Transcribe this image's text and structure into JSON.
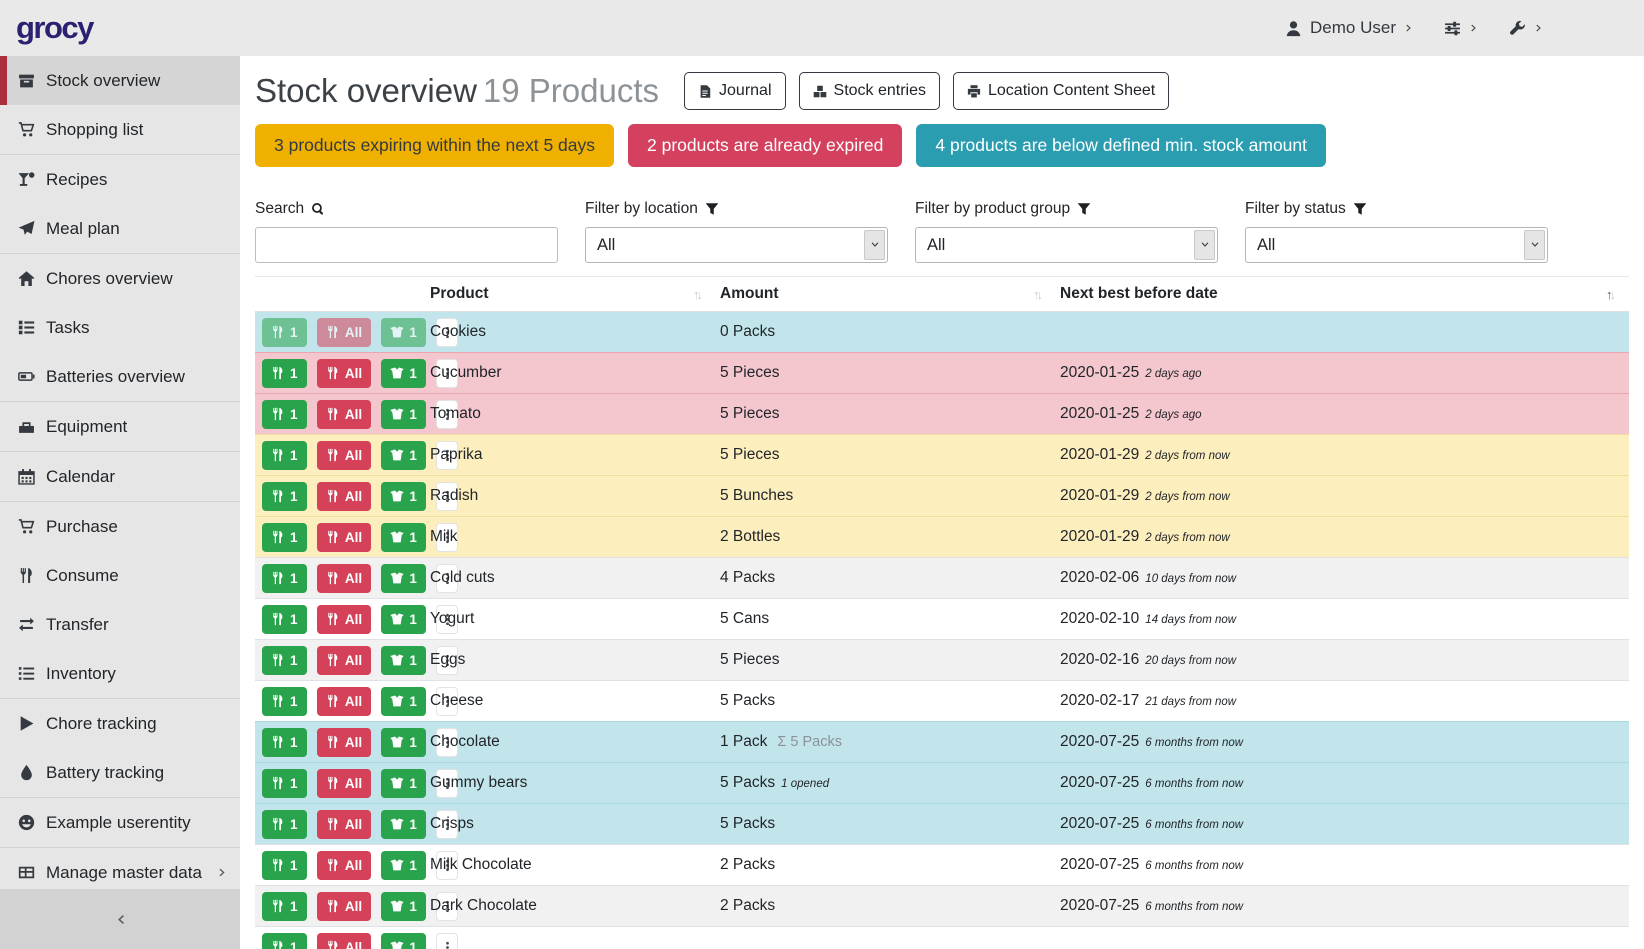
{
  "brand": "grocy",
  "navbar": {
    "user": "Demo User"
  },
  "sidebar": {
    "items": [
      {
        "label": "Stock overview",
        "icon": "box-archive",
        "active": true
      },
      {
        "label": "Shopping list",
        "icon": "shopping-cart",
        "divider_after": true
      },
      {
        "label": "Recipes",
        "icon": "cocktail"
      },
      {
        "label": "Meal plan",
        "icon": "paper-plane",
        "divider_after": true
      },
      {
        "label": "Chores overview",
        "icon": "home"
      },
      {
        "label": "Tasks",
        "icon": "tasks"
      },
      {
        "label": "Batteries overview",
        "icon": "battery",
        "divider_after": true
      },
      {
        "label": "Equipment",
        "icon": "toolbox",
        "divider_after": true
      },
      {
        "label": "Calendar",
        "icon": "calendar",
        "divider_after": true
      },
      {
        "label": "Purchase",
        "icon": "shopping-cart"
      },
      {
        "label": "Consume",
        "icon": "utensils"
      },
      {
        "label": "Transfer",
        "icon": "exchange"
      },
      {
        "label": "Inventory",
        "icon": "list",
        "divider_after": true
      },
      {
        "label": "Chore tracking",
        "icon": "play"
      },
      {
        "label": "Battery tracking",
        "icon": "droplet",
        "divider_after": true
      },
      {
        "label": "Example userentity",
        "icon": "smiley",
        "divider_after": true
      },
      {
        "label": "Manage master data",
        "icon": "table",
        "submenu": true
      }
    ]
  },
  "header": {
    "title": "Stock overview",
    "product_count": "19 Products",
    "buttons": [
      {
        "label": "Journal",
        "icon": "file"
      },
      {
        "label": "Stock entries",
        "icon": "cubes"
      },
      {
        "label": "Location Content Sheet",
        "icon": "print"
      }
    ]
  },
  "alerts": {
    "expiring": "3 products expiring within the next 5 days",
    "expired": "2 products are already expired",
    "below_min": "4 products are below defined min. stock amount"
  },
  "filters": {
    "search": {
      "label": "Search",
      "value": ""
    },
    "location": {
      "label": "Filter by location",
      "value": "All"
    },
    "product_group": {
      "label": "Filter by product group",
      "value": "All"
    },
    "status": {
      "label": "Filter by status",
      "value": "All"
    }
  },
  "table": {
    "headers": [
      "Product",
      "Amount",
      "Next best before date"
    ],
    "sort": {
      "column": "Next best before date",
      "direction": "asc"
    },
    "row_buttons": {
      "consume_one": "1",
      "consume_all": "All",
      "open_one": "1"
    },
    "rows": [
      {
        "product": "Cookies",
        "amount": "0 Packs",
        "amount_sum": "",
        "amount_opened": "",
        "date": "",
        "date_relative": "",
        "status": "below-min",
        "buttons_muted": true
      },
      {
        "product": "Cucumber",
        "amount": "5 Pieces",
        "amount_sum": "",
        "amount_opened": "",
        "date": "2020-01-25",
        "date_relative": "2 days ago",
        "status": "expired"
      },
      {
        "product": "Tomato",
        "amount": "5 Pieces",
        "amount_sum": "",
        "amount_opened": "",
        "date": "2020-01-25",
        "date_relative": "2 days ago",
        "status": "expired"
      },
      {
        "product": "Paprika",
        "amount": "5 Pieces",
        "amount_sum": "",
        "amount_opened": "",
        "date": "2020-01-29",
        "date_relative": "2 days from now",
        "status": "expiring"
      },
      {
        "product": "Radish",
        "amount": "5 Bunches",
        "amount_sum": "",
        "amount_opened": "",
        "date": "2020-01-29",
        "date_relative": "2 days from now",
        "status": "expiring"
      },
      {
        "product": "Milk",
        "amount": "2 Bottles",
        "amount_sum": "",
        "amount_opened": "",
        "date": "2020-01-29",
        "date_relative": "2 days from now",
        "status": "expiring"
      },
      {
        "product": "Cold cuts",
        "amount": "4 Packs",
        "amount_sum": "",
        "amount_opened": "",
        "date": "2020-02-06",
        "date_relative": "10 days from now",
        "status": "none"
      },
      {
        "product": "Yogurt",
        "amount": "5 Cans",
        "amount_sum": "",
        "amount_opened": "",
        "date": "2020-02-10",
        "date_relative": "14 days from now",
        "status": "none"
      },
      {
        "product": "Eggs",
        "amount": "5 Pieces",
        "amount_sum": "",
        "amount_opened": "",
        "date": "2020-02-16",
        "date_relative": "20 days from now",
        "status": "none"
      },
      {
        "product": "Cheese",
        "amount": "5 Packs",
        "amount_sum": "",
        "amount_opened": "",
        "date": "2020-02-17",
        "date_relative": "21 days from now",
        "status": "none"
      },
      {
        "product": "Chocolate",
        "amount": "1 Pack",
        "amount_sum": "Σ 5 Packs",
        "amount_opened": "",
        "date": "2020-07-25",
        "date_relative": "6 months from now",
        "status": "below-min"
      },
      {
        "product": "Gummy bears",
        "amount": "5 Packs",
        "amount_sum": "",
        "amount_opened": "1 opened",
        "date": "2020-07-25",
        "date_relative": "6 months from now",
        "status": "below-min"
      },
      {
        "product": "Crisps",
        "amount": "5 Packs",
        "amount_sum": "",
        "amount_opened": "",
        "date": "2020-07-25",
        "date_relative": "6 months from now",
        "status": "below-min"
      },
      {
        "product": "Milk Chocolate",
        "amount": "2 Packs",
        "amount_sum": "",
        "amount_opened": "",
        "date": "2020-07-25",
        "date_relative": "6 months from now",
        "status": "none"
      },
      {
        "product": "Dark Chocolate",
        "amount": "2 Packs",
        "amount_sum": "",
        "amount_opened": "",
        "date": "2020-07-25",
        "date_relative": "6 months from now",
        "status": "none"
      },
      {
        "product": "",
        "amount": "",
        "amount_sum": "",
        "amount_opened": "",
        "date": "",
        "date_relative": "",
        "status": "none",
        "partial": true
      }
    ]
  },
  "colors": {
    "brand_text": "#2a2170",
    "active_item_border": "#ac2f3e",
    "alert_warning": "#f0b000",
    "alert_danger": "#d4415e",
    "alert_info": "#2a9db0",
    "row_expired": "#f4c6ce",
    "row_expiring": "#fdeebd",
    "row_below_min": "#c2e5ec",
    "button_green": "#2aa44c",
    "button_red": "#d6415a"
  }
}
